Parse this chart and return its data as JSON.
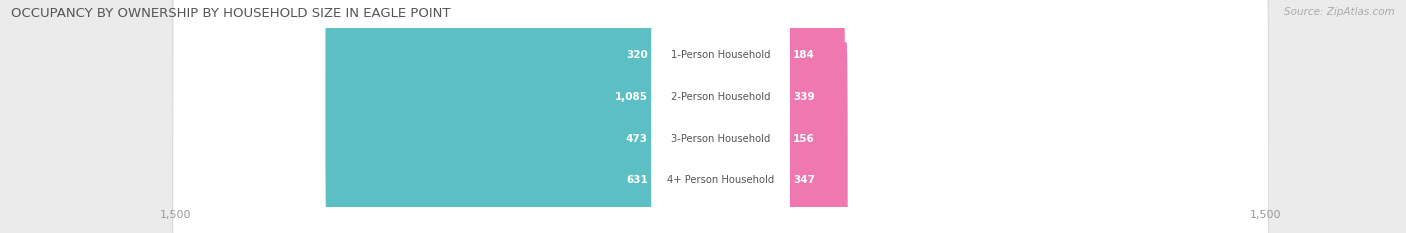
{
  "title": "OCCUPANCY BY OWNERSHIP BY HOUSEHOLD SIZE IN EAGLE POINT",
  "source": "Source: ZipAtlas.com",
  "categories": [
    "1-Person Household",
    "2-Person Household",
    "3-Person Household",
    "4+ Person Household"
  ],
  "owner_values": [
    320,
    1085,
    473,
    631
  ],
  "renter_values": [
    184,
    339,
    156,
    347
  ],
  "owner_color": "#5BBFC4",
  "renter_color": "#F078B0",
  "axis_max": 1500,
  "bg_color": "#ebebeb",
  "bar_row_bg_color": "#ffffff",
  "row_separator_color": "#d8d8d8",
  "title_fontsize": 9.5,
  "source_fontsize": 7.5,
  "value_text_color_inside": "#ffffff",
  "value_text_color_outside": "#777777",
  "label_text_color": "#555555"
}
